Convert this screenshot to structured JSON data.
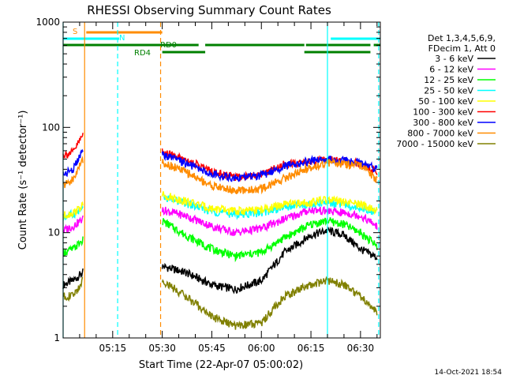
{
  "chart_data": {
    "type": "line",
    "title": "RHESSI Observing Summary Count Rates",
    "xlabel": "Start Time (22-Apr-07 05:00:02)",
    "ylabel": "Count Rate (s⁻¹ detector⁻¹)",
    "yscale": "log",
    "ylim": [
      1,
      1000
    ],
    "xlim_minutes": [
      0,
      96
    ],
    "x_ticks": [
      {
        "t": 15,
        "label": "05:15"
      },
      {
        "t": 30,
        "label": "05:30"
      },
      {
        "t": 45,
        "label": "05:45"
      },
      {
        "t": 60,
        "label": "06:00"
      },
      {
        "t": 75,
        "label": "06:15"
      },
      {
        "t": 90,
        "label": "06:30"
      }
    ],
    "y_ticks": [
      {
        "v": 1,
        "label": "1"
      },
      {
        "v": 10,
        "label": "10"
      },
      {
        "v": 100,
        "label": "100"
      },
      {
        "v": 1000,
        "label": "1000"
      }
    ],
    "legend_header": [
      "Det 1,3,4,5,6,9,",
      "FDecim 1, Att 0"
    ],
    "series": [
      {
        "name": "3 - 6 keV",
        "color": "#000000",
        "pre": [
          3.2,
          3.5,
          4.2
        ],
        "post": [
          4.8,
          4.2,
          3.2,
          2.9,
          3.5,
          6.5,
          9.5,
          10.5,
          9.5,
          7.0,
          5.8
        ]
      },
      {
        "name": "6 - 12 keV",
        "color": "#ff00ff",
        "pre": [
          10.5,
          11.5,
          13.5
        ],
        "post": [
          16.5,
          14.5,
          11.5,
          10.0,
          11.0,
          13.5,
          16.5,
          16.0,
          15.5,
          14.5,
          11.5
        ]
      },
      {
        "name": "12 - 25 keV",
        "color": "#00ff00",
        "pre": [
          6.5,
          7.0,
          8.5
        ],
        "post": [
          13.0,
          9.5,
          7.0,
          6.0,
          6.5,
          9.0,
          12.0,
          13.0,
          12.0,
          10.0,
          7.5
        ]
      },
      {
        "name": "25 - 50 keV",
        "color": "#00ffff",
        "pre": [
          14.0,
          15.0,
          17.0
        ],
        "post": [
          22.0,
          19.0,
          16.0,
          15.0,
          15.5,
          17.5,
          18.5,
          19.5,
          18.5,
          17.5,
          15.5
        ]
      },
      {
        "name": "50 - 100 keV",
        "color": "#ffff00",
        "pre": [
          14.5,
          15.5,
          18.0
        ],
        "post": [
          23.0,
          20.0,
          17.0,
          16.0,
          16.5,
          18.5,
          19.5,
          20.5,
          19.5,
          18.5,
          16.5
        ]
      },
      {
        "name": "100 - 300 keV",
        "color": "#ff0000",
        "pre": [
          55.0,
          58.0,
          85.0
        ],
        "post": [
          58.0,
          50.0,
          38.0,
          34.0,
          36.0,
          45.0,
          47.0,
          49.0,
          48.0,
          45.0,
          38.0
        ]
      },
      {
        "name": "300 - 800 keV",
        "color": "#0000ff",
        "pre": [
          36.0,
          40.0,
          60.0
        ],
        "post": [
          55.0,
          46.0,
          36.0,
          33.0,
          35.0,
          43.0,
          48.0,
          50.0,
          48.0,
          46.0,
          40.0
        ]
      },
      {
        "name": "800 - 7000 keV",
        "color": "#ff8c00",
        "pre": [
          28.0,
          32.0,
          50.0
        ],
        "post": [
          47.0,
          38.0,
          28.0,
          25.0,
          26.0,
          33.0,
          42.0,
          46.0,
          45.0,
          43.0,
          32.0
        ]
      },
      {
        "name": "7000 - 15000 keV",
        "color": "#808000",
        "pre": [
          2.5,
          2.5,
          3.5
        ],
        "post": [
          3.5,
          2.5,
          1.6,
          1.3,
          1.4,
          2.5,
          3.2,
          3.5,
          3.2,
          2.5,
          1.8
        ]
      }
    ],
    "series_time_grid": {
      "pre_t": [
        0,
        3,
        6
      ],
      "post_t": [
        30,
        37,
        45,
        52,
        60,
        67,
        75,
        80,
        85,
        90,
        95
      ]
    },
    "flags": [
      {
        "label": "S",
        "color": "#ff8c00",
        "segments": [
          [
            7,
            30
          ]
        ]
      },
      {
        "label": "N",
        "color": "#00ffff",
        "segments": [
          [
            0,
            17
          ],
          [
            81,
            96
          ]
        ]
      },
      {
        "label": "RD0",
        "color": "#008000",
        "segments": [
          [
            0,
            41
          ],
          [
            43,
            73
          ],
          [
            73.5,
            93
          ],
          [
            94,
            96
          ]
        ]
      },
      {
        "label": "RD4",
        "color": "#008000",
        "segments": [
          [
            30,
            43
          ],
          [
            73,
            93
          ]
        ]
      }
    ],
    "vertical_lines": [
      {
        "t": 0,
        "color": "#00ffff",
        "style": "solid"
      },
      {
        "t": 6.5,
        "color": "#ff8c00",
        "style": "solid"
      },
      {
        "t": 16.5,
        "color": "#00ffff",
        "style": "dashed"
      },
      {
        "t": 29.5,
        "color": "#ff8c00",
        "style": "dashed"
      },
      {
        "t": 80,
        "color": "#00ffff",
        "style": "solid"
      },
      {
        "t": 95.5,
        "color": "#00ffff",
        "style": "dashed"
      }
    ],
    "footer_timestamp": "14-Oct-2021 18:54"
  }
}
